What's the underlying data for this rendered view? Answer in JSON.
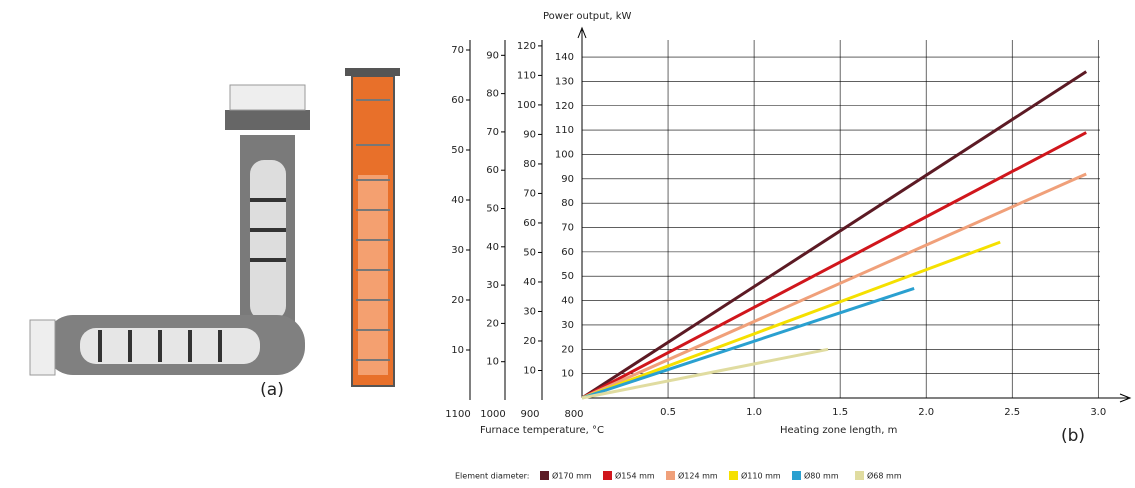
{
  "chart_data": {
    "type": "line",
    "y_label": "Power output, kW",
    "x_label": "Heating zone length, m",
    "temperature_label": "Furnace temperature, °C",
    "y_bottom_label": "800",
    "panel_labels": [
      "(a)",
      "(b)"
    ],
    "legend_title": "Element diameter:",
    "xlim": [
      0,
      3.01
    ],
    "xticks": [
      0.5,
      {
        "value": 1,
        "label": "1.0"
      },
      1.5,
      {
        "value": 2,
        "label": "2.0"
      },
      2.5,
      {
        "value": 3,
        "label": "3.0"
      }
    ],
    "ylim": [
      0,
      147
    ],
    "yticks": [
      10,
      20,
      30,
      40,
      50,
      60,
      70,
      80,
      90,
      100,
      110,
      120,
      130,
      140
    ],
    "grid": true,
    "extra_axes": [
      {
        "bottom_label": "900",
        "ylim": [
          0,
          122
        ],
        "yticks": [
          10,
          20,
          30,
          40,
          50,
          60,
          70,
          80,
          90,
          100,
          110,
          120
        ]
      },
      {
        "bottom_label": "1000",
        "ylim": [
          0,
          94
        ],
        "yticks": [
          10,
          20,
          30,
          40,
          50,
          60,
          70,
          80,
          90
        ]
      },
      {
        "bottom_label": "1100",
        "ylim": [
          0,
          72
        ],
        "yticks": [
          10,
          20,
          30,
          40,
          50,
          60,
          70
        ]
      }
    ],
    "series": [
      {
        "name": "Ø170 mm",
        "color": "#5c1a24",
        "x": [
          0,
          2.93
        ],
        "values": [
          0,
          134
        ]
      },
      {
        "name": "Ø154 mm",
        "color": "#d0161c",
        "x": [
          0,
          2.93
        ],
        "values": [
          0,
          109
        ]
      },
      {
        "name": "Ø124 mm",
        "color": "#f0a07a",
        "x": [
          0,
          2.93
        ],
        "values": [
          0,
          92
        ]
      },
      {
        "name": "Ø110 mm",
        "color": "#f5e000",
        "x": [
          0,
          2.43
        ],
        "values": [
          0,
          64
        ]
      },
      {
        "name": "Ø80 mm",
        "color": "#2aa0d0",
        "x": [
          0,
          1.93
        ],
        "values": [
          0,
          45
        ]
      },
      {
        "name": "Ø68 mm",
        "color": "#e0dca0",
        "x": [
          0,
          1.43
        ],
        "values": [
          0,
          20
        ]
      }
    ]
  }
}
